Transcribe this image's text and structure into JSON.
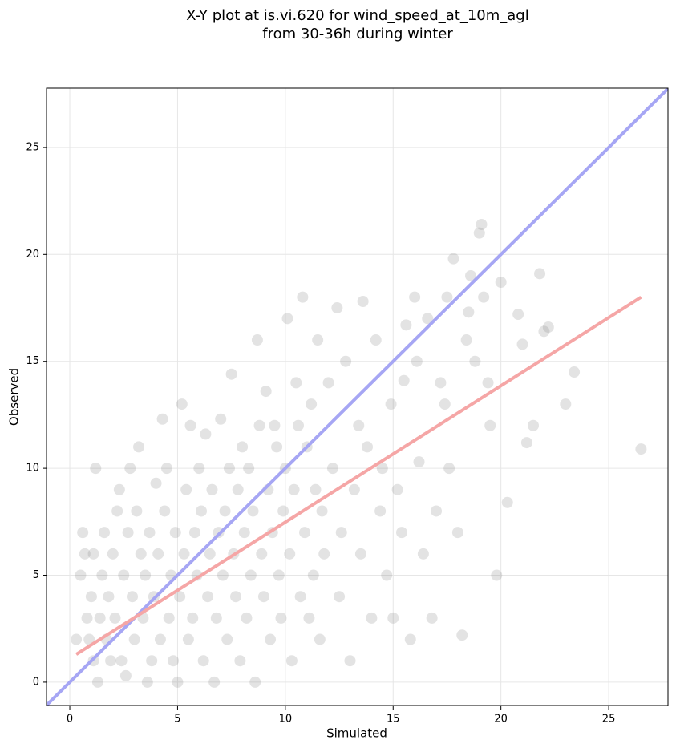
{
  "chart_data": {
    "type": "scatter",
    "title": "X-Y plot at is.vi.620 for wind_speed_at_10m_agl",
    "subtitle": "from 30-36h during winter",
    "x_label": "Simulated",
    "y_label": "Observed",
    "xlim": [
      -1.08,
      27.75
    ],
    "ylim": [
      -1.09,
      27.77
    ],
    "xticks": [
      0,
      5,
      10,
      15,
      20,
      25
    ],
    "yticks": [
      0,
      5,
      10,
      15,
      20,
      25
    ],
    "grid": true,
    "point_color": "#808080",
    "x": [
      0.3,
      0.5,
      0.6,
      0.7,
      0.8,
      0.9,
      1.0,
      1.1,
      1.1,
      1.2,
      1.3,
      1.4,
      1.5,
      1.6,
      1.7,
      1.8,
      1.9,
      2.0,
      2.1,
      2.2,
      2.3,
      2.4,
      2.5,
      2.6,
      2.7,
      2.8,
      2.9,
      3.0,
      3.1,
      3.2,
      3.3,
      3.4,
      3.5,
      3.6,
      3.7,
      3.8,
      3.9,
      4.0,
      4.1,
      4.2,
      4.3,
      4.4,
      4.5,
      4.6,
      4.7,
      4.8,
      4.9,
      5.0,
      5.1,
      5.2,
      5.3,
      5.4,
      5.5,
      5.6,
      5.7,
      5.8,
      5.9,
      6.0,
      6.1,
      6.2,
      6.3,
      6.4,
      6.5,
      6.6,
      6.7,
      6.8,
      6.9,
      7.0,
      7.1,
      7.2,
      7.3,
      7.4,
      7.5,
      7.6,
      7.7,
      7.8,
      7.9,
      8.0,
      8.1,
      8.2,
      8.3,
      8.4,
      8.5,
      8.6,
      8.7,
      8.8,
      8.9,
      9.0,
      9.1,
      9.2,
      9.3,
      9.4,
      9.5,
      9.6,
      9.7,
      9.8,
      9.9,
      10.0,
      10.1,
      10.2,
      10.3,
      10.4,
      10.5,
      10.6,
      10.7,
      10.8,
      10.9,
      11.0,
      11.1,
      11.2,
      11.3,
      11.4,
      11.5,
      11.6,
      11.7,
      11.8,
      12.0,
      12.2,
      12.4,
      12.5,
      12.6,
      12.8,
      13.0,
      13.2,
      13.4,
      13.5,
      13.6,
      13.8,
      14.0,
      14.2,
      14.4,
      14.5,
      14.7,
      14.9,
      15.0,
      15.2,
      15.4,
      15.6,
      15.8,
      16.0,
      16.2,
      16.4,
      16.6,
      16.8,
      17.0,
      17.2,
      17.4,
      17.6,
      17.8,
      18.0,
      18.2,
      18.4,
      18.6,
      18.8,
      19.0,
      19.2,
      19.4,
      19.5,
      19.8,
      20.0,
      20.3,
      20.8,
      21.0,
      21.2,
      21.5,
      21.8,
      22.0,
      23.0,
      23.4,
      26.5,
      19.1,
      17.5,
      18.5,
      22.2,
      16.1,
      15.5
    ],
    "y": [
      2,
      5,
      7,
      6,
      3,
      2,
      4,
      6,
      1,
      10,
      0,
      3,
      5,
      7,
      2,
      4,
      1,
      6,
      3,
      8,
      9,
      1,
      5,
      0.3,
      7,
      10,
      4,
      2,
      8,
      11,
      6,
      3,
      5,
      0,
      7,
      1,
      4,
      9.3,
      6,
      2,
      12.3,
      8,
      10,
      3,
      5,
      1,
      7,
      0,
      4,
      13,
      6,
      9,
      2,
      12,
      3,
      7,
      5,
      10,
      8,
      1,
      11.6,
      4,
      6,
      9,
      0,
      3,
      7,
      12.3,
      5,
      8,
      2,
      10,
      14.4,
      6,
      4,
      9,
      1,
      11,
      7,
      3,
      10,
      5,
      8,
      0,
      16,
      12,
      6,
      4,
      13.6,
      9,
      2,
      7,
      12,
      11,
      5,
      3,
      8,
      10,
      17,
      6,
      1,
      9,
      14,
      12,
      4,
      18,
      7,
      11,
      3,
      13,
      5,
      9,
      16,
      2,
      8,
      6,
      14,
      10,
      17.5,
      4,
      7,
      15,
      1,
      9,
      12,
      6,
      17.8,
      11,
      3,
      16,
      8,
      10,
      5,
      13,
      3,
      9,
      7,
      16.7,
      2,
      18,
      10.3,
      6,
      17,
      3,
      8,
      14,
      13,
      10,
      19.8,
      7,
      2.2,
      16,
      19,
      15,
      21,
      18,
      14,
      12,
      5,
      18.7,
      8.4,
      17.2,
      15.8,
      11.2,
      12,
      19.1,
      16.4,
      13,
      14.5,
      10.9,
      21.4,
      18,
      17.3,
      16.6,
      15.0,
      14.1
    ],
    "lines": [
      {
        "color": "#a6a6f4",
        "x": [
          -1.08,
          27.75
        ],
        "y": [
          -1.08,
          27.75
        ]
      },
      {
        "color": "#f5a6a6",
        "x": [
          0.3,
          26.5
        ],
        "y": [
          1.3,
          18.0
        ]
      }
    ]
  }
}
